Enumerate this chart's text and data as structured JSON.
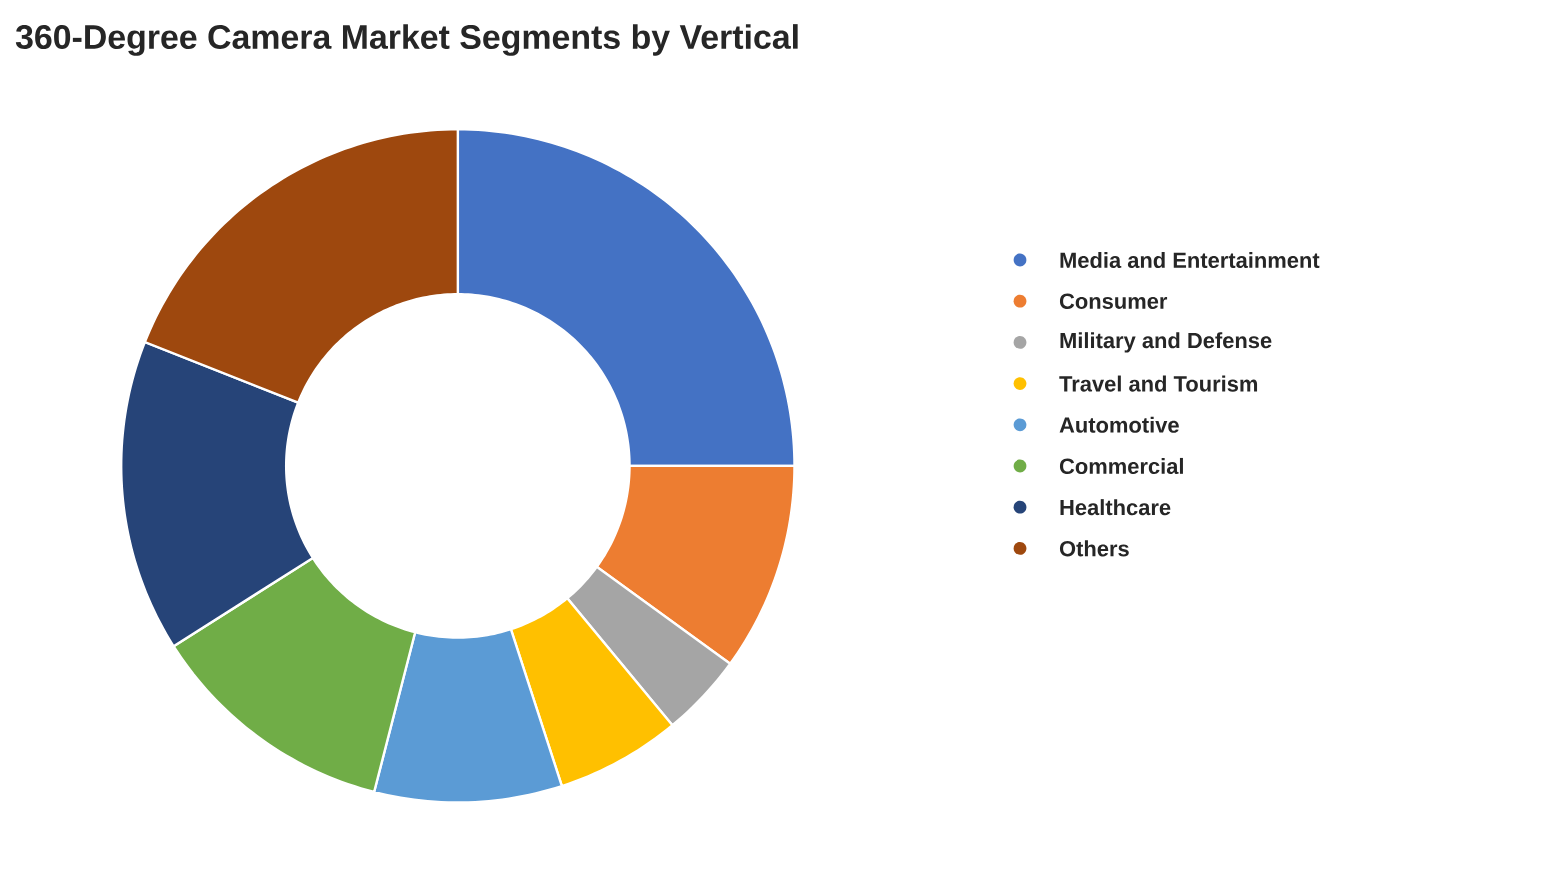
{
  "chart_data": {
    "type": "donut",
    "title": "360-Degree Camera Market Segments by Vertical",
    "categories": [
      "Media and Entertainment",
      "Consumer",
      "Military and Defense",
      "Travel and Tourism",
      "Automotive",
      "Commercial",
      "Healthcare",
      "Others"
    ],
    "values": [
      25,
      10,
      4,
      6,
      9,
      12,
      15,
      19
    ],
    "colors": [
      "#4472c4",
      "#ed7d31",
      "#a5a5a5",
      "#ffc000",
      "#5b9bd5",
      "#70ad47",
      "#264478",
      "#9e480e"
    ],
    "legend": "right"
  }
}
